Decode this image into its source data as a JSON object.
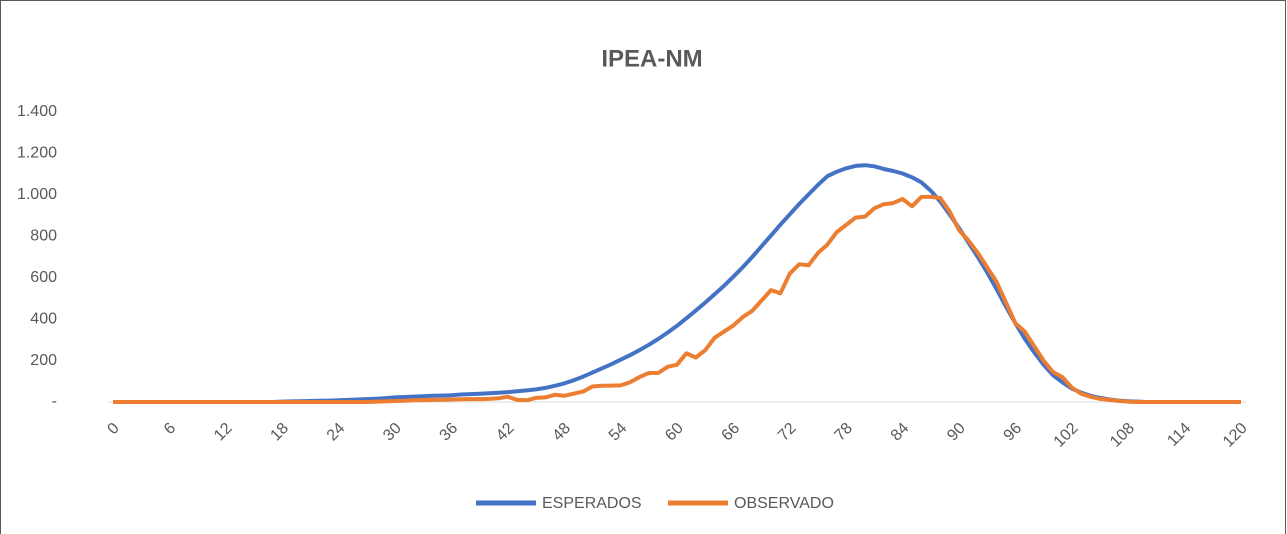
{
  "chart_data": {
    "type": "line",
    "title": "IPEA-NM",
    "x": [
      0,
      1,
      2,
      3,
      4,
      5,
      6,
      7,
      8,
      9,
      10,
      11,
      12,
      13,
      14,
      15,
      16,
      17,
      18,
      19,
      20,
      21,
      22,
      23,
      24,
      25,
      26,
      27,
      28,
      29,
      30,
      31,
      32,
      33,
      34,
      35,
      36,
      37,
      38,
      39,
      40,
      41,
      42,
      43,
      44,
      45,
      46,
      47,
      48,
      49,
      50,
      51,
      52,
      53,
      54,
      55,
      56,
      57,
      58,
      59,
      60,
      61,
      62,
      63,
      64,
      65,
      66,
      67,
      68,
      69,
      70,
      71,
      72,
      73,
      74,
      75,
      76,
      77,
      78,
      79,
      80,
      81,
      82,
      83,
      84,
      85,
      86,
      87,
      88,
      89,
      90,
      91,
      92,
      93,
      94,
      95,
      96,
      97,
      98,
      99,
      100,
      101,
      102,
      103,
      104,
      105,
      106,
      107,
      108,
      109,
      110,
      111,
      112,
      113,
      114,
      115,
      116,
      117,
      118,
      119,
      120
    ],
    "series": [
      {
        "name": "ESPERADOS",
        "color": "#4472c4",
        "values": [
          0,
          0,
          0,
          0,
          0,
          0,
          0,
          0,
          0,
          0,
          0,
          0,
          0,
          0,
          0,
          0,
          0,
          0,
          2,
          3,
          4,
          5,
          6,
          7,
          8,
          10,
          12,
          14,
          16,
          19,
          22,
          24,
          26,
          28,
          30,
          31,
          33,
          36,
          38,
          40,
          42,
          45,
          48,
          52,
          56,
          61,
          68,
          78,
          90,
          105,
          122,
          142,
          162,
          182,
          204,
          226,
          250,
          276,
          304,
          335,
          368,
          404,
          441,
          480,
          520,
          561,
          605,
          651,
          700,
          752,
          804,
          856,
          906,
          956,
          1002,
          1048,
          1090,
          1112,
          1128,
          1140,
          1143,
          1138,
          1125,
          1115,
          1103,
          1085,
          1060,
          1020,
          968,
          905,
          840,
          770,
          700,
          625,
          545,
          460,
          380,
          305,
          240,
          180,
          130,
          95,
          65,
          45,
          30,
          20,
          12,
          7,
          4,
          2,
          0,
          0,
          0,
          0,
          0,
          0,
          0,
          0,
          0,
          0,
          0
        ]
      },
      {
        "name": "OBSERVADO",
        "color": "#ed7d31",
        "values": [
          0,
          0,
          0,
          0,
          0,
          0,
          0,
          0,
          0,
          0,
          0,
          0,
          0,
          0,
          0,
          0,
          0,
          0,
          0,
          0,
          0,
          0,
          0,
          0,
          0,
          0,
          0,
          0,
          2,
          3,
          5,
          6,
          8,
          9,
          10,
          11,
          12,
          13,
          14,
          14,
          15,
          18,
          25,
          10,
          8,
          20,
          22,
          35,
          30,
          40,
          50,
          75,
          78,
          79,
          80,
          95,
          120,
          140,
          140,
          170,
          180,
          235,
          215,
          250,
          310,
          340,
          370,
          410,
          440,
          490,
          540,
          525,
          620,
          665,
          660,
          720,
          760,
          820,
          855,
          890,
          895,
          935,
          955,
          960,
          980,
          945,
          990,
          990,
          985,
          920,
          830,
          780,
          720,
          650,
          580,
          480,
          380,
          340,
          270,
          200,
          145,
          120,
          70,
          40,
          25,
          15,
          10,
          5,
          2,
          0,
          0,
          0,
          0,
          0,
          0,
          0,
          0,
          0,
          0,
          0,
          0
        ]
      }
    ],
    "xlim": [
      0,
      120
    ],
    "xticks": [
      0,
      6,
      12,
      18,
      24,
      30,
      36,
      42,
      48,
      54,
      60,
      66,
      72,
      78,
      84,
      90,
      96,
      102,
      108,
      114,
      120
    ],
    "ylim": [
      0,
      1400
    ],
    "yticks": [
      {
        "value": 0,
        "label": "-"
      },
      200,
      400,
      600,
      800,
      {
        "value": 1000,
        "label": "1.000"
      },
      {
        "value": 1200,
        "label": "1.200"
      },
      {
        "value": 1400,
        "label": "1.400"
      }
    ],
    "grid": false,
    "legend": "bottom"
  }
}
